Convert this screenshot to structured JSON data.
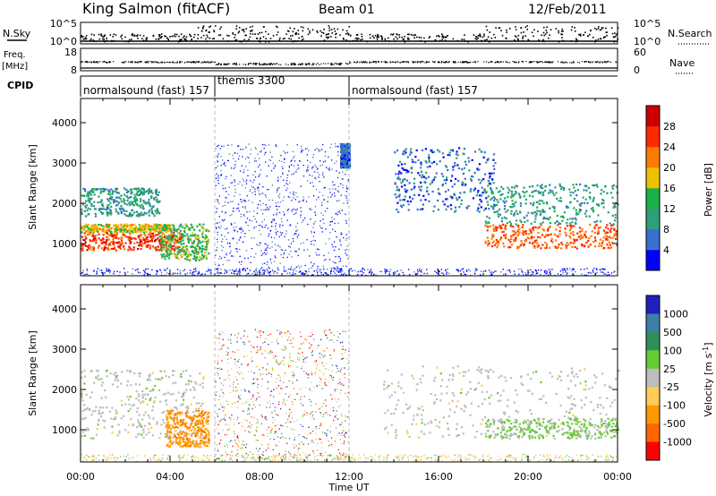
{
  "header": {
    "station": "King Salmon (fitACF)",
    "beam": "Beam 01",
    "date": "12/Feb/2011"
  },
  "top_panels": {
    "nsky_label": "N.Sky",
    "nsky_ticks": [
      "10^5",
      "10^0"
    ],
    "nsearch_label": "N.Search",
    "nsearch_ticks": [
      "10^5",
      "10^0"
    ],
    "freq_label": "Freq.",
    "freq_unit": "[MHz]",
    "freq_ticks": [
      "18",
      "8"
    ],
    "nave_label": "Nave",
    "nave_ticks": [
      "60",
      "0"
    ],
    "cpid_label": "CPID"
  },
  "cpid_segments": [
    {
      "name": "normalsound (fast) 157",
      "start": 0,
      "end": 6
    },
    {
      "name": "themis 3300",
      "start": 6,
      "end": 12
    },
    {
      "name": "normalsound (fast) 157",
      "start": 12,
      "end": 24
    }
  ],
  "chart_data": [
    {
      "type": "heatmap",
      "panel": "power",
      "ylabel": "Slant Range [km]",
      "xlabel": "Time UT",
      "x_ticks": [
        "00:00",
        "04:00",
        "08:00",
        "12:00",
        "16:00",
        "20:00",
        "00:00"
      ],
      "y_ticks": [
        1000,
        2000,
        3000,
        4000
      ],
      "ylim": [
        200,
        4600
      ],
      "xlim_hours": [
        0,
        24
      ],
      "colorbar": {
        "label": "Power [dB]",
        "ticks": [
          4,
          8,
          12,
          16,
          20,
          24,
          28
        ],
        "range": [
          0,
          32
        ],
        "colors": [
          "#0000ff",
          "#3b6fd0",
          "#2f9f7a",
          "#19b24a",
          "#f0c000",
          "#ff7a00",
          "#ff2a00",
          "#cc0000"
        ]
      },
      "echo_regions": [
        {
          "t0": 0.0,
          "t1": 4.5,
          "r0": 850,
          "r1": 1300,
          "level": 26
        },
        {
          "t0": 0.0,
          "t1": 4.0,
          "r0": 1300,
          "r1": 1500,
          "level": 18
        },
        {
          "t0": 0.0,
          "t1": 3.5,
          "r0": 1700,
          "r1": 2400,
          "level": 10
        },
        {
          "t0": 3.5,
          "t1": 5.7,
          "r0": 600,
          "r1": 1500,
          "level": 14
        },
        {
          "t0": 11.6,
          "t1": 12.0,
          "r0": 2900,
          "r1": 3500,
          "level": 6
        },
        {
          "t0": 14.0,
          "t1": 18.5,
          "r0": 1800,
          "r1": 3400,
          "level": 6
        },
        {
          "t0": 18.0,
          "t1": 24.0,
          "r0": 900,
          "r1": 1500,
          "level": 24
        },
        {
          "t0": 18.0,
          "t1": 24.0,
          "r0": 1500,
          "r1": 2500,
          "level": 10
        },
        {
          "t0": 6.0,
          "t1": 12.0,
          "r0": 250,
          "r1": 3500,
          "level": 4
        }
      ]
    },
    {
      "type": "heatmap",
      "panel": "velocity",
      "ylabel": "Slant Range [km]",
      "xlabel": "Time UT",
      "x_ticks": [
        "00:00",
        "04:00",
        "08:00",
        "12:00",
        "16:00",
        "20:00",
        "00:00"
      ],
      "y_ticks": [
        1000,
        2000,
        3000,
        4000
      ],
      "ylim": [
        200,
        4600
      ],
      "xlim_hours": [
        0,
        24
      ],
      "colorbar": {
        "label": "Velocity [m s",
        "label_exp": "-1",
        "label_close": "]",
        "ticks": [
          "1000",
          "500",
          "100",
          "25",
          "-25",
          "-100",
          "-500",
          "-1000"
        ],
        "colors": [
          "#2020c0",
          "#3e7fa8",
          "#2f8f5a",
          "#66cc33",
          "#bdbdbd",
          "#ffcc55",
          "#ff9900",
          "#ff6600",
          "#ff0000"
        ]
      },
      "echo_regions": [
        {
          "t0": 0.0,
          "t1": 5.5,
          "r0": 800,
          "r1": 2500,
          "level": "-25..25"
        },
        {
          "t0": 3.8,
          "t1": 5.7,
          "r0": 600,
          "r1": 1500,
          "level": "-100..-500"
        },
        {
          "t0": 13.5,
          "t1": 24.0,
          "r0": 800,
          "r1": 2600,
          "level": "-25..25"
        },
        {
          "t0": 18.0,
          "t1": 24.0,
          "r0": 800,
          "r1": 1300,
          "level": "25..100"
        },
        {
          "t0": 6.0,
          "t1": 12.0,
          "r0": 250,
          "r1": 3500,
          "level": "mixed"
        }
      ]
    }
  ]
}
